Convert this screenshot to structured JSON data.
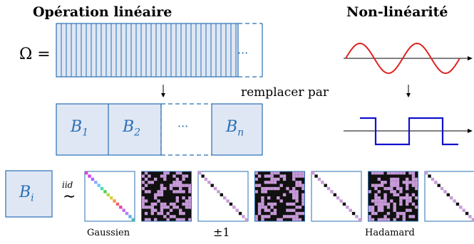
{
  "headers": {
    "linear": "Opération linéaire",
    "nonlinear": "Non-linéarité"
  },
  "omega_label": "Ω =",
  "dots": "···",
  "replace_label": "remplacer par",
  "blocks": [
    "B",
    "B",
    "B"
  ],
  "block_subscripts": [
    "1",
    "2",
    "n"
  ],
  "bi_label": "B",
  "bi_subscript": "i",
  "iid_label": "iid",
  "tilde": "∼",
  "matrix_labels": [
    "Gaussien",
    "±1",
    "Hadamard"
  ],
  "colors": {
    "accent": "#2a6fb5",
    "block_fill": "#dfe7f4",
    "sine": "#e02020",
    "square": "#1010cc",
    "dark_cell": "#111111",
    "pink_cell": "#c79ad8"
  }
}
